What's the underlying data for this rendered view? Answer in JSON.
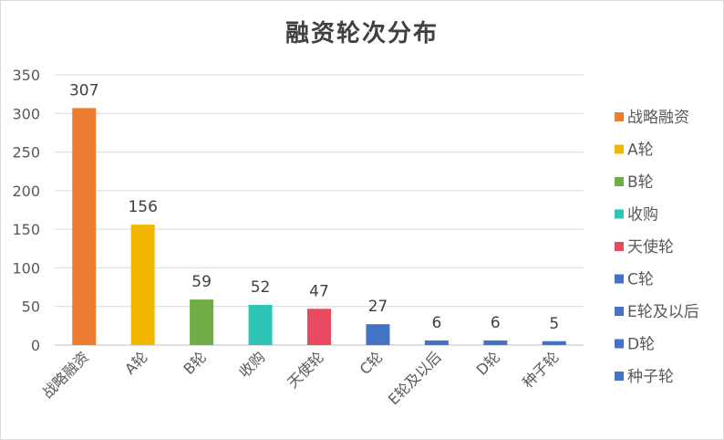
{
  "chart_data": {
    "type": "bar",
    "title": "融资轮次分布",
    "categories": [
      "战略融资",
      "A轮",
      "B轮",
      "收购",
      "天使轮",
      "C轮",
      "E轮及以后",
      "D轮",
      "种子轮"
    ],
    "values": [
      307,
      156,
      59,
      52,
      47,
      27,
      6,
      6,
      5
    ],
    "colors": [
      "#ED7D31",
      "#F2B800",
      "#70AD47",
      "#2EC4B6",
      "#E84A5F",
      "#4472C4",
      "#4472C4",
      "#4472C4",
      "#4472C4"
    ],
    "ylim": [
      0,
      350
    ],
    "yticks": [
      0,
      50,
      100,
      150,
      200,
      250,
      300,
      350
    ],
    "grid": true,
    "legend": "right",
    "data_labels": true
  }
}
